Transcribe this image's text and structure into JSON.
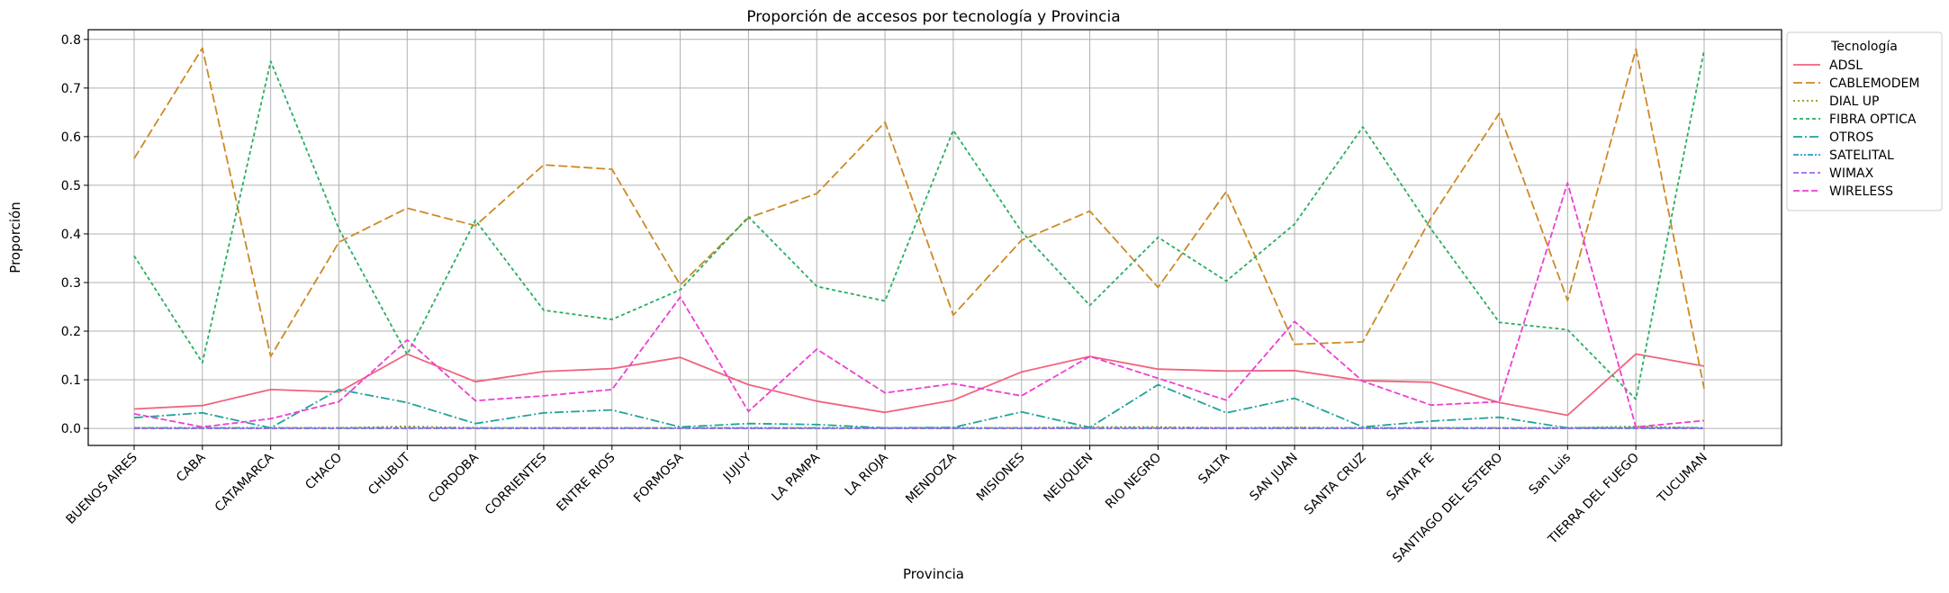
{
  "chart_data": {
    "type": "line",
    "title": "Proporción de accesos por tecnología y Provincia",
    "xlabel": "Provincia",
    "ylabel": "Proporción",
    "ylim": [
      -0.035,
      0.82
    ],
    "yticks": [
      0.0,
      0.1,
      0.2,
      0.3,
      0.4,
      0.5,
      0.6,
      0.7,
      0.8
    ],
    "ytick_labels": [
      "0.0",
      "0.1",
      "0.2",
      "0.3",
      "0.4",
      "0.5",
      "0.6",
      "0.7",
      "0.8"
    ],
    "grid": true,
    "legend_title": "Tecnología",
    "legend_position": "outside-top-right",
    "categories": [
      "BUENOS AIRES",
      "CABA",
      "CATAMARCA",
      "CHACO",
      "CHUBUT",
      "CORDOBA",
      "CORRIENTES",
      "ENTRE RIOS",
      "FORMOSA",
      "JUJUY",
      "LA PAMPA",
      "LA RIOJA",
      "MENDOZA",
      "MISIONES",
      "NEUQUEN",
      "RIO NEGRO",
      "SALTA",
      "SAN JUAN",
      "SANTA CRUZ",
      "SANTA FE",
      "SANTIAGO DEL ESTERO",
      "San Luis",
      "TIERRA DEL FUEGO",
      "TUCUMAN"
    ],
    "series": [
      {
        "name": "ADSL",
        "color": "#f0637e",
        "dash": "",
        "values": [
          0.04,
          0.047,
          0.08,
          0.075,
          0.153,
          0.096,
          0.117,
          0.123,
          0.146,
          0.09,
          0.056,
          0.033,
          0.058,
          0.116,
          0.148,
          0.122,
          0.118,
          0.119,
          0.098,
          0.095,
          0.053,
          0.027,
          0.153,
          0.128
        ]
      },
      {
        "name": "CABLEMODEM",
        "color": "#cc8a25",
        "dash": "10,4",
        "values": [
          0.555,
          0.782,
          0.148,
          0.383,
          0.453,
          0.417,
          0.542,
          0.533,
          0.295,
          0.433,
          0.483,
          0.63,
          0.233,
          0.387,
          0.447,
          0.29,
          0.487,
          0.173,
          0.178,
          0.433,
          0.648,
          0.263,
          0.78,
          0.082
        ]
      },
      {
        "name": "DIAL UP",
        "color": "#8a9a1b",
        "dash": "2,3",
        "values": [
          0.001,
          0.001,
          0.001,
          0.001,
          0.004,
          0.001,
          0.001,
          0.001,
          0.001,
          0.001,
          0.001,
          0.001,
          0.001,
          0.001,
          0.003,
          0.003,
          0.001,
          0.002,
          0.001,
          0.001,
          0.001,
          0.001,
          0.004,
          0.001
        ]
      },
      {
        "name": "FIBRA OPTICA",
        "color": "#27ae60",
        "dash": "4,3",
        "values": [
          0.355,
          0.135,
          0.755,
          0.41,
          0.152,
          0.428,
          0.243,
          0.224,
          0.285,
          0.435,
          0.292,
          0.262,
          0.613,
          0.405,
          0.253,
          0.393,
          0.303,
          0.42,
          0.62,
          0.41,
          0.218,
          0.203,
          0.06,
          0.778
        ]
      },
      {
        "name": "OTROS",
        "color": "#21a39a",
        "dash": "10,3,2,3",
        "values": [
          0.022,
          0.032,
          0.001,
          0.08,
          0.053,
          0.01,
          0.032,
          0.038,
          0.003,
          0.01,
          0.008,
          0.001,
          0.002,
          0.034,
          0.002,
          0.09,
          0.032,
          0.062,
          0.003,
          0.015,
          0.023,
          0.001,
          0.001,
          0.001
        ]
      },
      {
        "name": "SATELITAL",
        "color": "#2f98c9",
        "dash": "6,2,2,2,2,2",
        "values": [
          0.001,
          0.001,
          0.001,
          0.001,
          0.001,
          0.001,
          0.001,
          0.001,
          0.001,
          0.001,
          0.001,
          0.001,
          0.001,
          0.001,
          0.001,
          0.001,
          0.001,
          0.001,
          0.001,
          0.001,
          0.001,
          0.001,
          0.001,
          0.001
        ]
      },
      {
        "name": "WIMAX",
        "color": "#9b6be8",
        "dash": "6,3",
        "values": [
          0.0,
          0.0,
          0.0,
          0.0,
          0.0,
          0.0,
          0.0,
          0.0,
          0.0,
          0.0,
          0.0,
          0.0,
          0.0,
          0.0,
          0.0,
          0.0,
          0.0,
          0.0,
          0.0,
          0.0,
          0.0,
          0.0,
          0.0,
          0.0
        ]
      },
      {
        "name": "WIRELESS",
        "color": "#ee3fd1",
        "dash": "7,3",
        "values": [
          0.03,
          0.003,
          0.02,
          0.055,
          0.182,
          0.057,
          0.067,
          0.08,
          0.27,
          0.035,
          0.163,
          0.073,
          0.092,
          0.067,
          0.148,
          0.103,
          0.058,
          0.22,
          0.097,
          0.048,
          0.055,
          0.505,
          0.003,
          0.016
        ]
      }
    ]
  }
}
